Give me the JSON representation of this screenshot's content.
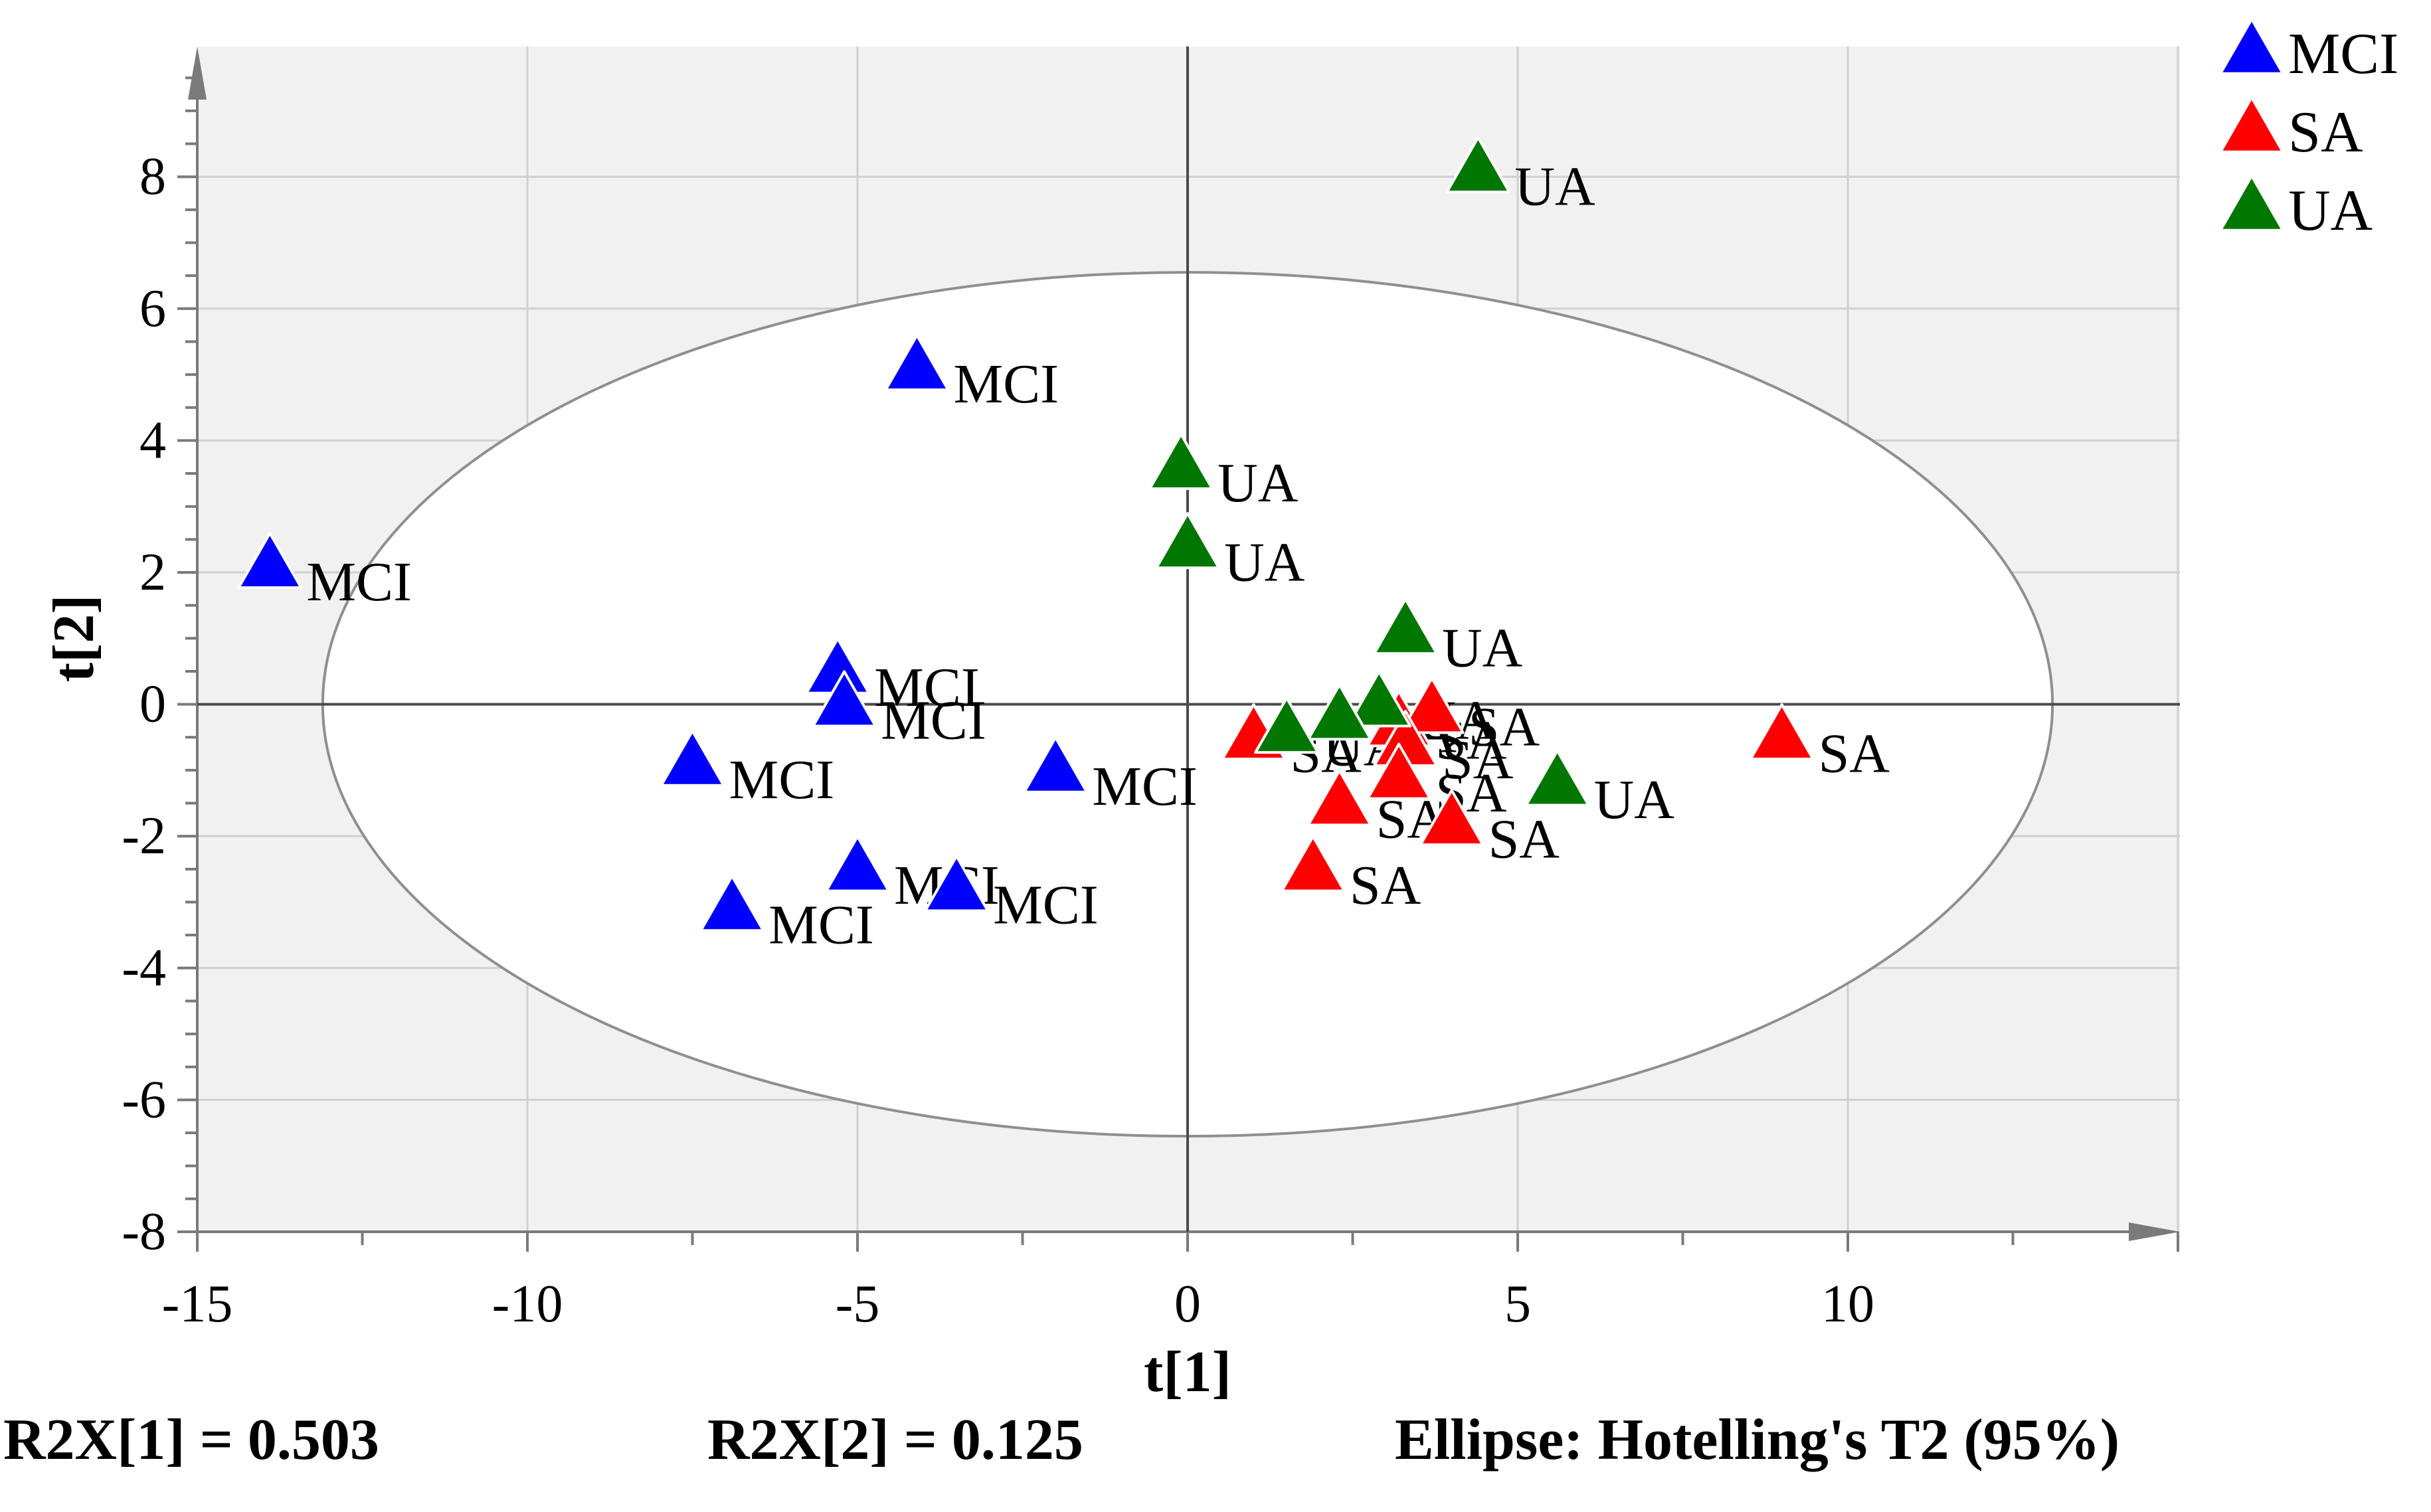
{
  "chart_data": {
    "type": "scatter",
    "title": "",
    "xlabel": "t[1]",
    "ylabel": "t[2]",
    "xlim": [
      -15,
      15
    ],
    "ylim": [
      -8,
      10
    ],
    "xticks": [
      -15,
      -10,
      -5,
      0,
      5,
      10
    ],
    "yticks": [
      -8,
      -6,
      -4,
      -2,
      0,
      2,
      4,
      6,
      8
    ],
    "grid": true,
    "legend_position": "top-right",
    "ellipse": {
      "label": "Hotelling's T2 (95%)",
      "center": [
        0,
        0
      ],
      "semi_axis_x": 13.1,
      "semi_axis_y": 6.55
    },
    "series": [
      {
        "name": "MCI",
        "color": "#0000FF",
        "marker": "triangle",
        "points": [
          {
            "x": -13.9,
            "y": 2.1,
            "label": "MCI"
          },
          {
            "x": -4.1,
            "y": 5.1,
            "label": "MCI"
          },
          {
            "x": -5.3,
            "y": 0.5,
            "label": "MCI"
          },
          {
            "x": -5.2,
            "y": 0.0,
            "label": "MCI"
          },
          {
            "x": -7.5,
            "y": -0.9,
            "label": "MCI"
          },
          {
            "x": -2.0,
            "y": -1.0,
            "label": "MCI"
          },
          {
            "x": -5.0,
            "y": -2.5,
            "label": "MCI"
          },
          {
            "x": -3.5,
            "y": -2.8,
            "label": "MCI"
          },
          {
            "x": -6.9,
            "y": -3.1,
            "label": "MCI"
          }
        ]
      },
      {
        "name": "SA",
        "color": "#FF0000",
        "marker": "triangle",
        "points": [
          {
            "x": 9.0,
            "y": -0.5,
            "label": "SA"
          },
          {
            "x": 1.0,
            "y": -0.5,
            "label": "SA"
          },
          {
            "x": 3.2,
            "y": -0.3,
            "label": "SA"
          },
          {
            "x": 3.7,
            "y": -0.1,
            "label": "SA"
          },
          {
            "x": 3.3,
            "y": -0.6,
            "label": "SA"
          },
          {
            "x": 3.2,
            "y": -1.1,
            "label": "SA"
          },
          {
            "x": 2.3,
            "y": -1.5,
            "label": "SA"
          },
          {
            "x": 4.0,
            "y": -1.8,
            "label": "SA"
          },
          {
            "x": 1.9,
            "y": -2.5,
            "label": "SA"
          }
        ]
      },
      {
        "name": "UA",
        "color": "#007700",
        "marker": "triangle",
        "points": [
          {
            "x": 4.4,
            "y": 8.1,
            "label": "UA"
          },
          {
            "x": -0.1,
            "y": 3.6,
            "label": "UA"
          },
          {
            "x": 0.0,
            "y": 2.4,
            "label": "UA"
          },
          {
            "x": 3.3,
            "y": 1.1,
            "label": "UA"
          },
          {
            "x": 2.9,
            "y": 0.0,
            "label": "UA"
          },
          {
            "x": 2.3,
            "y": -0.2,
            "label": "UA"
          },
          {
            "x": 1.5,
            "y": -0.4,
            "label": "UA"
          },
          {
            "x": 5.6,
            "y": -1.2,
            "label": "UA"
          }
        ]
      }
    ]
  },
  "footer": {
    "r2x1": "R2X[1] = 0.503",
    "r2x2": "R2X[2] = 0.125",
    "ellipse_note": "Ellipse: Hotelling's T2 (95%)"
  }
}
